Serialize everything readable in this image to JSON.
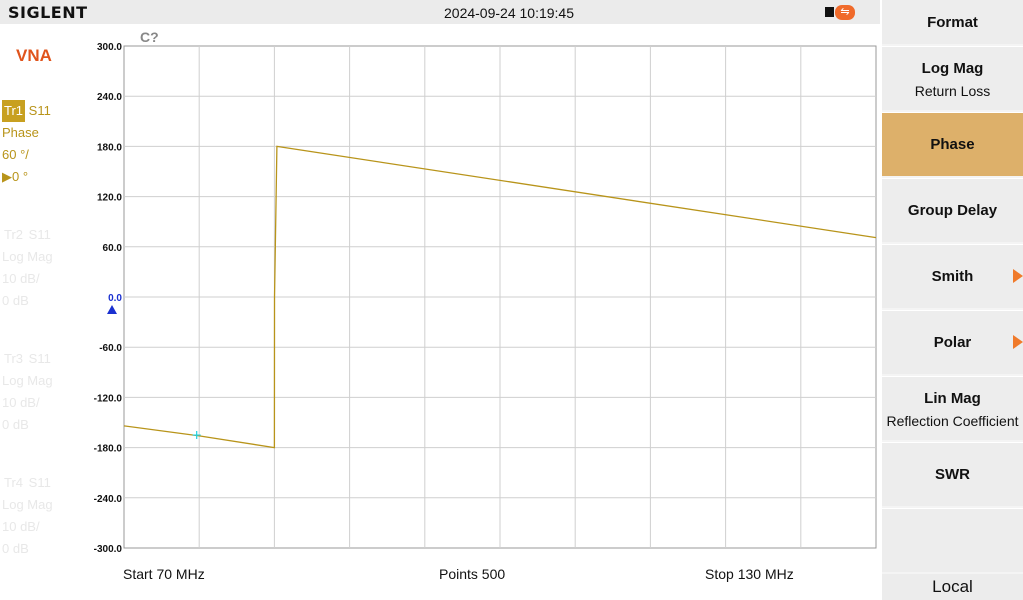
{
  "header": {
    "brand": "SIGLENT",
    "datetime": "2024-09-24 10:19:45",
    "usb_icon_label": "⇋"
  },
  "left_panel": {
    "mode": "VNA",
    "traces": [
      {
        "tag": "Tr1",
        "param": "S11",
        "format": "Phase",
        "scale": "60 °/",
        "ref": "▶0 °"
      },
      {
        "tag": "Tr2",
        "param": "S11",
        "format": "Log Mag",
        "scale": "10 dB/",
        "ref": "0 dB"
      },
      {
        "tag": "Tr3",
        "param": "S11",
        "format": "Log Mag",
        "scale": "10 dB/",
        "ref": "0 dB"
      },
      {
        "tag": "Tr4",
        "param": "S11",
        "format": "Log Mag",
        "scale": "10 dB/",
        "ref": "0 dB"
      }
    ]
  },
  "plot": {
    "cal_status": "C?",
    "ref_value": "0.0",
    "start": "Start  70 MHz",
    "points": "Points  500",
    "stop": "Stop  130 MHz"
  },
  "chart_data": {
    "type": "line",
    "title": "",
    "xlabel": "",
    "ylabel": "",
    "xlim": [
      70,
      130
    ],
    "ylim": [
      -300,
      300
    ],
    "y_ticks": [
      "300.0",
      "240.0",
      "180.0",
      "120.0",
      "60.0",
      "0.0",
      "-60.0",
      "-120.0",
      "-180.0",
      "-240.0",
      "-300.0"
    ],
    "grid": true,
    "x_unit": "MHz",
    "y_unit": "°",
    "series": [
      {
        "color": "#b8941a",
        "x": [
          70,
          76,
          82,
          82.01,
          82.2,
          130
        ],
        "y": [
          -154,
          -166,
          -180,
          0,
          180,
          71
        ]
      }
    ],
    "marker": {
      "x": 75.8,
      "y": -165,
      "color": "#1fd0e0"
    }
  },
  "softkeys": {
    "title": "Format",
    "items": [
      {
        "label": "Log Mag",
        "sub": "Return Loss",
        "selected": false,
        "arrow": false
      },
      {
        "label": "Phase",
        "sub": "",
        "selected": true,
        "arrow": false
      },
      {
        "label": "Group Delay",
        "sub": "",
        "selected": false,
        "arrow": false
      },
      {
        "label": "Smith",
        "sub": "",
        "selected": false,
        "arrow": true
      },
      {
        "label": "Polar",
        "sub": "",
        "selected": false,
        "arrow": true
      },
      {
        "label": "Lin Mag",
        "sub": "Reflection Coefficient",
        "selected": false,
        "arrow": false
      },
      {
        "label": "SWR",
        "sub": "",
        "selected": false,
        "arrow": false
      },
      {
        "label": "",
        "sub": "",
        "selected": false,
        "arrow": false
      }
    ],
    "local": "Local"
  },
  "colors": {
    "trace1": "#b8941a",
    "accent": "#e0541c",
    "selected_key": "#ddb06a",
    "ref_marker": "#1a30d0"
  }
}
